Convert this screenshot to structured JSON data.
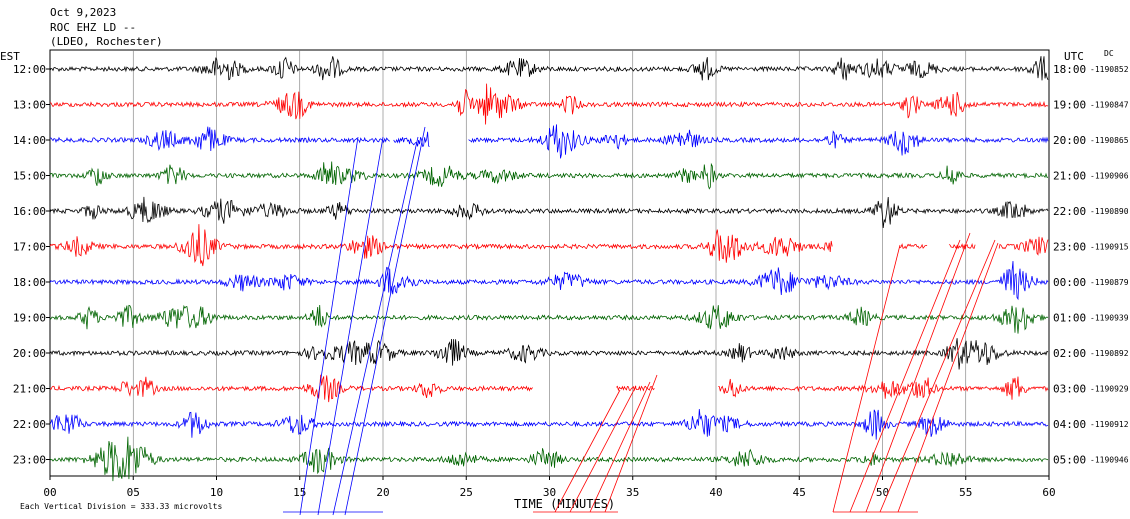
{
  "header": {
    "lines": [
      "Oct 9,2023",
      "ROC EHZ LD --",
      "(LDEO, Rochester)"
    ]
  },
  "left_axis_label": "EST",
  "right_axis_label": "UTC",
  "dc_label": "DC",
  "footer": {
    "scale_note": "Each Vertical Division = 333.33 microvolts"
  },
  "chart_data": {
    "type": "line",
    "title": "",
    "xlabel": "TIME (MINUTES)",
    "ylabel": "",
    "xlim": [
      0,
      60
    ],
    "xticks": [
      "00",
      "05",
      "10",
      "15",
      "20",
      "25",
      "30",
      "35",
      "40",
      "45",
      "50",
      "55",
      "60"
    ],
    "grid": true,
    "trace_colors": [
      "#000000",
      "#ff0000",
      "#0000ff",
      "#006400"
    ],
    "rows": [
      {
        "est": "12:00",
        "utc": "18:00",
        "dc": "-1190852"
      },
      {
        "est": "13:00",
        "utc": "19:00",
        "dc": "-1190847"
      },
      {
        "est": "14:00",
        "utc": "20:00",
        "dc": "-1190865"
      },
      {
        "est": "15:00",
        "utc": "21:00",
        "dc": "-1190906"
      },
      {
        "est": "16:00",
        "utc": "22:00",
        "dc": "-1190890"
      },
      {
        "est": "17:00",
        "utc": "23:00",
        "dc": "-1190915"
      },
      {
        "est": "18:00",
        "utc": "00:00",
        "dc": "-1190879"
      },
      {
        "est": "19:00",
        "utc": "01:00",
        "dc": "-1190939"
      },
      {
        "est": "20:00",
        "utc": "02:00",
        "dc": "-1190892"
      },
      {
        "est": "21:00",
        "utc": "03:00",
        "dc": "-1190929"
      },
      {
        "est": "22:00",
        "utc": "04:00",
        "dc": "-1190912"
      },
      {
        "est": "23:00",
        "utc": "05:00",
        "dc": "-1190946"
      }
    ],
    "gaps": [
      {
        "row": 2,
        "from": 14.0,
        "to": 14.0
      },
      {
        "row": 2,
        "from": 20.4,
        "to": 20.6
      },
      {
        "row": 2,
        "from": 22.8,
        "to": 25.1
      },
      {
        "row": 5,
        "from": 47.0,
        "to": 51.0
      },
      {
        "row": 5,
        "from": 52.7,
        "to": 54.0
      },
      {
        "row": 5,
        "from": 55.6,
        "to": 57.0
      },
      {
        "row": 9,
        "from": 29.0,
        "to": 34.0
      },
      {
        "row": 9,
        "from": 36.3,
        "to": 40.1
      }
    ]
  }
}
